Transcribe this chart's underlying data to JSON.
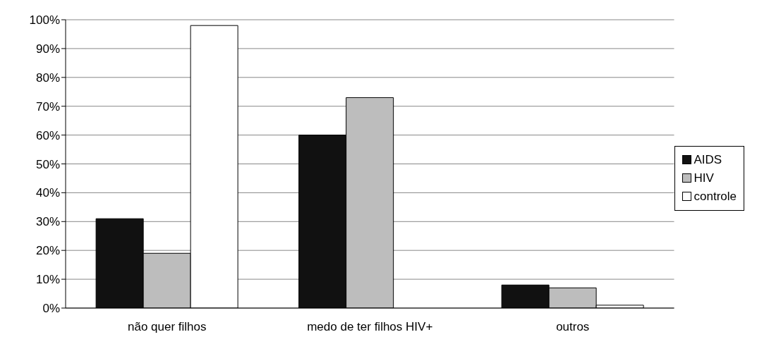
{
  "chart_data": {
    "type": "bar",
    "categories": [
      "não quer filhos",
      "medo de ter filhos HIV+",
      "outros"
    ],
    "series": [
      {
        "name": "AIDS",
        "color": "#111111",
        "values": [
          31,
          60,
          8
        ]
      },
      {
        "name": "HIV",
        "color": "#bdbdbd",
        "values": [
          19,
          73,
          7
        ]
      },
      {
        "name": "controle",
        "color": "#ffffff",
        "values": [
          98,
          null,
          1
        ]
      }
    ],
    "ylim": [
      0,
      100
    ],
    "yticks": [
      {
        "value": 0,
        "label": "0%"
      },
      {
        "value": 10,
        "label": "10%"
      },
      {
        "value": 20,
        "label": "20%"
      },
      {
        "value": 30,
        "label": "30%"
      },
      {
        "value": 40,
        "label": "40%"
      },
      {
        "value": 50,
        "label": "50%"
      },
      {
        "value": 60,
        "label": "60%"
      },
      {
        "value": 70,
        "label": "70%"
      },
      {
        "value": 80,
        "label": "80%"
      },
      {
        "value": 90,
        "label": "90%"
      },
      {
        "value": 100,
        "label": "100%"
      }
    ],
    "grid": "y",
    "legend": "right"
  }
}
